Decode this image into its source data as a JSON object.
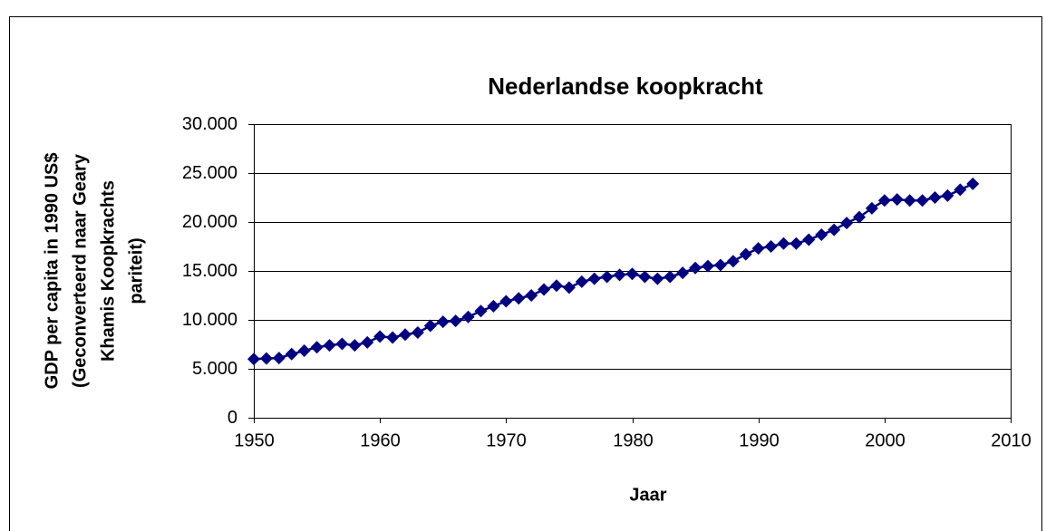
{
  "chart_data": {
    "type": "line",
    "title": "Nederlandse koopkracht",
    "xlabel": "Jaar",
    "ylabel": [
      "GDP per capita in 1990 US$",
      "(Geconverteerd naar Geary",
      "Khamis Koopkrachts",
      "pariteit)"
    ],
    "x": [
      1950,
      1951,
      1952,
      1953,
      1954,
      1955,
      1956,
      1957,
      1958,
      1959,
      1960,
      1961,
      1962,
      1963,
      1964,
      1965,
      1966,
      1967,
      1968,
      1969,
      1970,
      1971,
      1972,
      1973,
      1974,
      1975,
      1976,
      1977,
      1978,
      1979,
      1980,
      1981,
      1982,
      1983,
      1984,
      1985,
      1986,
      1987,
      1988,
      1989,
      1990,
      1991,
      1992,
      1993,
      1994,
      1995,
      1996,
      1997,
      1998,
      1999,
      2000,
      2001,
      2002,
      2003,
      2004,
      2005,
      2006,
      2007
    ],
    "series": [
      {
        "color": "#000080",
        "values": [
          5996,
          6050,
          6100,
          6500,
          6850,
          7200,
          7400,
          7550,
          7400,
          7700,
          8300,
          8200,
          8500,
          8700,
          9400,
          9800,
          9900,
          10300,
          10900,
          11400,
          11900,
          12200,
          12500,
          13100,
          13500,
          13300,
          13900,
          14200,
          14400,
          14600,
          14700,
          14400,
          14200,
          14400,
          14800,
          15300,
          15500,
          15600,
          16000,
          16700,
          17300,
          17500,
          17800,
          17800,
          18200,
          18700,
          19200,
          19900,
          20500,
          21400,
          22200,
          22300,
          22200,
          22200,
          22500,
          22700,
          23300,
          23900
        ]
      }
    ],
    "xlim": [
      1950,
      2010
    ],
    "xticks": [
      1950,
      1960,
      1970,
      1980,
      1990,
      2000,
      2010
    ],
    "ylim": [
      0,
      30000
    ],
    "yticks": [
      0,
      {
        "value": 5000,
        "label": "5.000"
      },
      {
        "value": 10000,
        "label": "10.000"
      },
      {
        "value": 15000,
        "label": "15.000"
      },
      {
        "value": 20000,
        "label": "20.000"
      },
      {
        "value": 25000,
        "label": "25.000"
      },
      {
        "value": 30000,
        "label": "30.000"
      }
    ],
    "grid": true
  }
}
